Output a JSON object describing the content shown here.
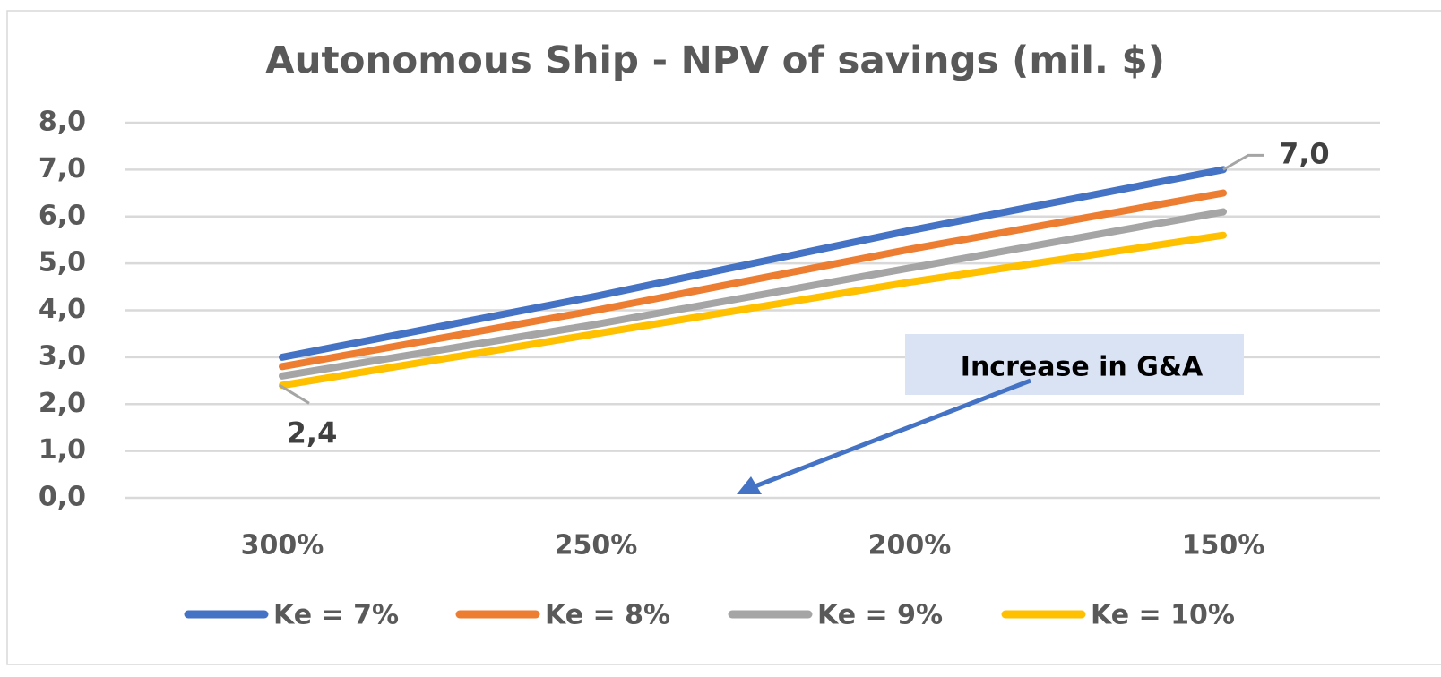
{
  "chart_data": {
    "type": "line",
    "title": "Autonomous Ship - NPV of savings (mil. $)",
    "categories": [
      "300%",
      "250%",
      "200%",
      "150%"
    ],
    "series": [
      {
        "name": "Ke = 7%",
        "color": "#4472c4",
        "values": [
          3.0,
          4.3,
          5.7,
          7.0
        ],
        "value_labels": [
          null,
          null,
          null,
          "7,0"
        ]
      },
      {
        "name": "Ke = 8%",
        "color": "#ed7d31",
        "values": [
          2.8,
          4.0,
          5.3,
          6.5
        ]
      },
      {
        "name": "Ke = 9%",
        "color": "#a5a5a5",
        "values": [
          2.6,
          3.7,
          4.9,
          6.1
        ]
      },
      {
        "name": "Ke = 10%",
        "color": "#ffc000",
        "values": [
          2.4,
          3.5,
          4.6,
          5.6
        ],
        "value_labels": [
          "2,4",
          null,
          null,
          null
        ]
      }
    ],
    "ylim": [
      0,
      8
    ],
    "yticks": [
      {
        "value": 0,
        "label": "0,0"
      },
      {
        "value": 1,
        "label": "1,0"
      },
      {
        "value": 2,
        "label": "2,0"
      },
      {
        "value": 3,
        "label": "3,0"
      },
      {
        "value": 4,
        "label": "4,0"
      },
      {
        "value": 5,
        "label": "5,0"
      },
      {
        "value": 6,
        "label": "6,0"
      },
      {
        "value": 7,
        "label": "7,0"
      },
      {
        "value": 8,
        "label": "8,0"
      }
    ],
    "grid": true,
    "legend": "bottom",
    "annotations": [
      "Increase in G&A"
    ]
  }
}
